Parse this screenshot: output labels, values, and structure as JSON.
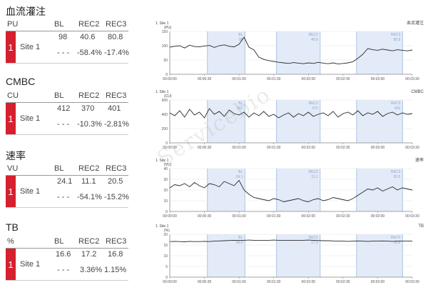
{
  "sections": [
    {
      "title": "血流灌注",
      "unit": "PU",
      "cols": [
        "BL",
        "REC2",
        "REC3"
      ],
      "site": "Site 1",
      "index": "1",
      "values": [
        "98",
        "40.6",
        "80.8"
      ],
      "dash": "- - -",
      "deltas": [
        "-58.4%",
        "-17.4%"
      ]
    },
    {
      "title": "CMBC",
      "unit": "CU",
      "cols": [
        "BL",
        "REC2",
        "REC3"
      ],
      "site": "Site 1",
      "index": "1",
      "values": [
        "412",
        "370",
        "401"
      ],
      "dash": "- - -",
      "deltas": [
        "-10.3%",
        "-2.81%"
      ]
    },
    {
      "title": "速率",
      "unit": "VU",
      "cols": [
        "BL",
        "REC2",
        "REC3"
      ],
      "site": "Site 1",
      "index": "1",
      "values": [
        "24.1",
        "11.1",
        "20.5"
      ],
      "dash": "- - -",
      "deltas": [
        "-54.1%",
        "-15.2%"
      ]
    },
    {
      "title": "TB",
      "unit": "%",
      "cols": [
        "BL",
        "REC2",
        "REC3"
      ],
      "site": "Site 1",
      "index": "1",
      "values": [
        "16.6",
        "17.2",
        "16.8"
      ],
      "dash": "- - -",
      "deltas": [
        "3.36%",
        "1.15%"
      ]
    }
  ],
  "watermark": "Servicebio",
  "chart_data": [
    {
      "type": "line",
      "title": "血流灌注",
      "site_label": "1. Site 1",
      "ylabel": "(PU)",
      "ylim": [
        0,
        150
      ],
      "yticks": [
        0,
        50,
        100,
        150
      ],
      "xticks": [
        "00:00:00",
        "00:00:30",
        "00:01:00",
        "00:01:30",
        "00:02:00",
        "00:02:30",
        "00:03:00",
        "00:03:30"
      ],
      "regions": [
        "BL",
        "REC2",
        "REC3"
      ],
      "region_values": [
        "98",
        "40.6",
        "80.8"
      ],
      "series": [
        {
          "values": [
            95,
            98,
            100,
            92,
            102,
            97,
            96,
            99,
            101,
            94,
            100,
            103,
            98,
            96,
            105,
            130,
            95,
            85,
            60,
            52,
            48,
            45,
            42,
            40,
            38,
            41,
            39,
            37,
            40,
            38,
            42,
            39,
            37,
            40,
            36,
            38,
            40,
            44,
            56,
            70,
            90,
            86,
            84,
            88,
            85,
            82,
            86,
            84,
            82,
            85
          ]
        }
      ]
    },
    {
      "type": "line",
      "title": "CMBC",
      "site_label": "1. Site 1",
      "ylabel": "(CU)",
      "ylim": [
        0,
        600
      ],
      "yticks": [
        0,
        200,
        400,
        600
      ],
      "xticks": [
        "00:00:00",
        "00:00:30",
        "00:01:00",
        "00:01:30",
        "00:02:00",
        "00:02:30",
        "00:03:00",
        "00:03:30"
      ],
      "regions": [
        "BL",
        "REC2",
        "REC3"
      ],
      "region_values": [
        "412",
        "370",
        "401"
      ],
      "series": [
        {
          "values": [
            420,
            380,
            450,
            360,
            470,
            390,
            430,
            350,
            480,
            400,
            440,
            370,
            460,
            410,
            390,
            430,
            360,
            420,
            380,
            440,
            370,
            400,
            350,
            390,
            420,
            360,
            410,
            380,
            430,
            370,
            400,
            420,
            380,
            440,
            360,
            410,
            430,
            390,
            450,
            380,
            420,
            400,
            440,
            370,
            410,
            430,
            390,
            420,
            400,
            410
          ]
        }
      ]
    },
    {
      "type": "line",
      "title": "速率",
      "site_label": "1. Site 1",
      "ylabel": "(VU)",
      "ylim": [
        0,
        40
      ],
      "yticks": [
        0,
        10,
        20,
        30,
        40
      ],
      "xticks": [
        "00:00:00",
        "00:00:30",
        "00:01:00",
        "00:01:30",
        "00:02:00",
        "00:02:30",
        "00:03:00",
        "00:03:30"
      ],
      "regions": [
        "BL",
        "REC2",
        "REC3"
      ],
      "region_values": [
        "24.1",
        "11.1",
        "20.5"
      ],
      "series": [
        {
          "values": [
            22,
            25,
            24,
            26,
            23,
            27,
            24,
            22,
            26,
            25,
            23,
            28,
            26,
            24,
            29,
            20,
            16,
            13,
            12,
            11,
            10,
            12,
            11,
            9,
            10,
            11,
            12,
            10,
            9,
            11,
            12,
            10,
            11,
            13,
            12,
            11,
            10,
            12,
            15,
            18,
            21,
            20,
            22,
            19,
            21,
            23,
            20,
            22,
            21,
            20
          ]
        }
      ]
    },
    {
      "type": "line",
      "title": "TB",
      "site_label": "1. Site 1",
      "ylabel": "(%)",
      "ylim": [
        0,
        20
      ],
      "yticks": [
        0,
        5,
        10,
        15,
        20
      ],
      "xticks": [
        "00:00:00",
        "00:00:30",
        "00:01:00",
        "00:01:30",
        "00:02:00",
        "00:02:30",
        "00:03:00",
        "00:03:30"
      ],
      "regions": [
        "BL",
        "REC2",
        "REC3"
      ],
      "region_values": [
        "16.6",
        "17.2",
        "16.8"
      ],
      "series": [
        {
          "values": [
            16.6,
            16.7,
            16.6,
            16.5,
            16.7,
            16.6,
            16.6,
            16.7,
            16.6,
            16.8,
            16.9,
            17.0,
            17.1,
            17.2,
            17.1,
            17.2,
            17.3,
            17.2,
            17.1,
            17.2,
            17.2,
            17.3,
            17.2,
            17.1,
            17.2,
            17.2,
            17.1,
            17.2,
            17.3,
            17.2,
            17.1,
            17.0,
            17.0,
            16.9,
            16.8,
            16.8,
            16.7,
            16.8,
            16.9,
            16.8,
            16.7,
            16.8,
            16.8,
            16.9,
            16.8,
            16.7,
            16.8,
            16.8,
            16.8,
            16.8
          ]
        }
      ]
    }
  ]
}
